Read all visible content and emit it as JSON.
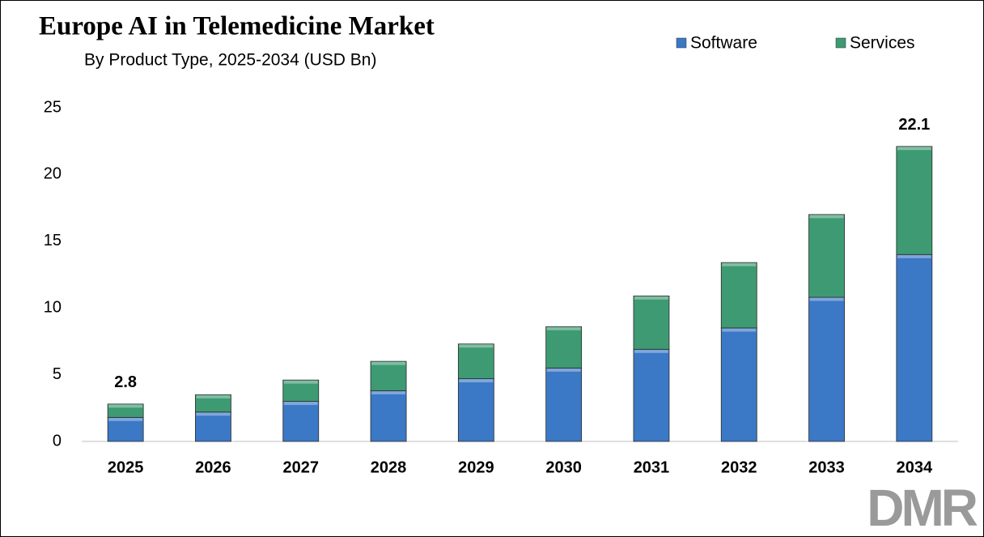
{
  "chart_data": {
    "type": "stacked_bar",
    "title": "Europe AI in Telemedicine Market",
    "subtitle": "By Product Type, 2025-2034 (USD Bn)",
    "categories": [
      "2025",
      "2026",
      "2027",
      "2028",
      "2029",
      "2030",
      "2031",
      "2032",
      "2033",
      "2034"
    ],
    "series": [
      {
        "name": "Software",
        "color": "#3b78c6",
        "values": [
          1.8,
          2.2,
          3.0,
          3.8,
          4.7,
          5.5,
          6.9,
          8.5,
          10.8,
          14.0
        ]
      },
      {
        "name": "Services",
        "color": "#3d9a72",
        "values": [
          1.0,
          1.3,
          1.6,
          2.2,
          2.6,
          3.1,
          4.0,
          4.9,
          6.2,
          8.1
        ]
      }
    ],
    "annotations": [
      {
        "x": "2025",
        "value": 2.8
      },
      {
        "x": "2034",
        "value": 22.1
      }
    ],
    "ylim": [
      0,
      25
    ],
    "yticks": [
      0,
      5,
      10,
      15,
      20,
      25
    ],
    "grid": false,
    "legend": "top-right"
  },
  "logo": "DMR"
}
